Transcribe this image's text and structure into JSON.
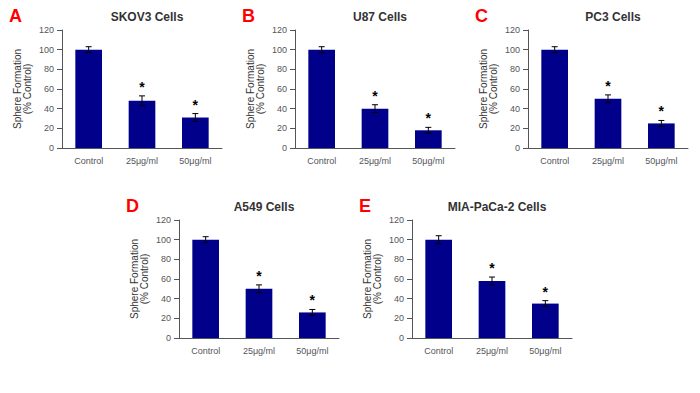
{
  "chart_data": [
    {
      "type": "bar",
      "title": "SKOV3 Cells",
      "categories": [
        "Control",
        "25μg/ml",
        "50μg/ml"
      ],
      "values": [
        100,
        48,
        31
      ],
      "errors": [
        3,
        5,
        4
      ],
      "color": "#00008B",
      "ylabel": "Sphere Formation\n(% Control)",
      "ylim": [
        0,
        120
      ],
      "yticks": [
        0,
        20,
        40,
        60,
        80,
        100,
        120
      ],
      "grid": false,
      "annotations": [
        {
          "text": "A",
          "color": "#FF0000"
        },
        {
          "text": "*",
          "category": "25μg/ml"
        },
        {
          "text": "*",
          "category": "50μg/ml"
        }
      ]
    },
    {
      "type": "bar",
      "title": "U87 Cells",
      "categories": [
        "Control",
        "25μg/ml",
        "50μg/ml"
      ],
      "values": [
        100,
        40,
        18
      ],
      "errors": [
        3,
        4,
        3
      ],
      "color": "#00008B",
      "ylabel": "Sphere Formation\n(% Control)",
      "ylim": [
        0,
        120
      ],
      "yticks": [
        0,
        20,
        40,
        60,
        80,
        100,
        120
      ],
      "grid": false,
      "annotations": [
        {
          "text": "B",
          "color": "#FF0000"
        },
        {
          "text": "*",
          "category": "25μg/ml"
        },
        {
          "text": "*",
          "category": "50μg/ml"
        }
      ]
    },
    {
      "type": "bar",
      "title": "PC3 Cells",
      "categories": [
        "Control",
        "25μg/ml",
        "50μg/ml"
      ],
      "values": [
        100,
        50,
        25
      ],
      "errors": [
        3,
        4,
        3
      ],
      "color": "#00008B",
      "ylabel": "Sphere Formation\n(% Control)",
      "ylim": [
        0,
        120
      ],
      "yticks": [
        0,
        20,
        40,
        60,
        80,
        100,
        120
      ],
      "grid": false,
      "annotations": [
        {
          "text": "C",
          "color": "#FF0000"
        },
        {
          "text": "*",
          "category": "25μg/ml"
        },
        {
          "text": "*",
          "category": "50μg/ml"
        }
      ]
    },
    {
      "type": "bar",
      "title": "A549 Cells",
      "categories": [
        "Control",
        "25μg/ml",
        "50μg/ml"
      ],
      "values": [
        100,
        50,
        26
      ],
      "errors": [
        3,
        4,
        3
      ],
      "color": "#00008B",
      "ylabel": "Sphere Formation\n(% Control)",
      "ylim": [
        0,
        120
      ],
      "yticks": [
        0,
        20,
        40,
        60,
        80,
        100,
        120
      ],
      "grid": false,
      "annotations": [
        {
          "text": "D",
          "color": "#FF0000"
        },
        {
          "text": "*",
          "category": "25μg/ml"
        },
        {
          "text": "*",
          "category": "50μg/ml"
        }
      ]
    },
    {
      "type": "bar",
      "title": "MIA-PaCa-2 Cells",
      "categories": [
        "Control",
        "25μg/ml",
        "50μg/ml"
      ],
      "values": [
        100,
        58,
        35
      ],
      "errors": [
        4,
        4,
        3
      ],
      "color": "#00008B",
      "ylabel": "Sphere Formation\n(% Control)",
      "ylim": [
        0,
        120
      ],
      "yticks": [
        0,
        20,
        40,
        60,
        80,
        100,
        120
      ],
      "grid": false,
      "annotations": [
        {
          "text": "E",
          "color": "#FF0000"
        },
        {
          "text": "*",
          "category": "25μg/ml"
        },
        {
          "text": "*",
          "category": "50μg/ml"
        }
      ]
    }
  ]
}
